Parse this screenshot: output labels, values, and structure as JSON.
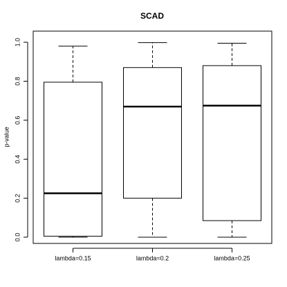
{
  "chart_data": {
    "type": "box",
    "title": "SCAD",
    "y_label": "p-value",
    "categories": [
      "lambda=0.15",
      "lambda=0.2",
      "lambda=0.25"
    ],
    "min": [
      0.0,
      0.0,
      0.0
    ],
    "q1": [
      0.005,
      0.2,
      0.085
    ],
    "median": [
      0.225,
      0.67,
      0.675
    ],
    "q3": [
      0.795,
      0.87,
      0.88
    ],
    "max": [
      0.98,
      0.998,
      0.995
    ],
    "color": "#000000",
    "ylim": [
      -0.032,
      1.057
    ],
    "yticks": [
      {
        "value": 0,
        "label": "0.0"
      },
      0.2,
      0.4,
      0.6,
      0.8,
      {
        "value": 1,
        "label": "1.0"
      }
    ]
  }
}
